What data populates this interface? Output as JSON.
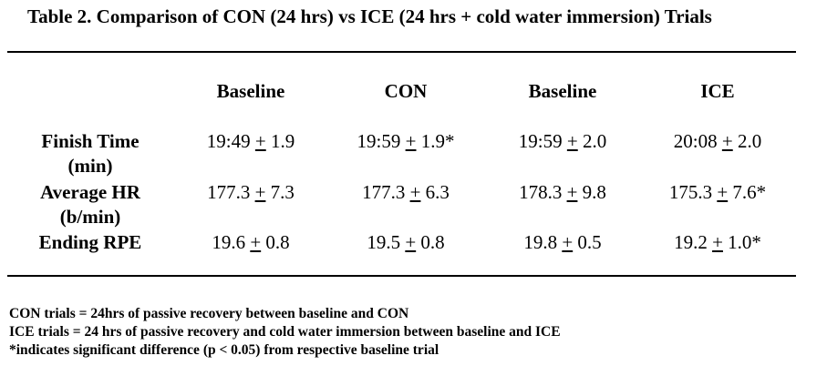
{
  "title": "Table 2.  Comparison of CON (24 hrs) vs ICE (24 hrs + cold water immersion) Trials",
  "columns": [
    "Baseline",
    "CON",
    "Baseline",
    "ICE"
  ],
  "rows": [
    {
      "label_line1": "Finish Time",
      "label_line2": "(min)",
      "cells": [
        {
          "mean": "19:49",
          "pm": "+",
          "sd": "1.9",
          "mark": ""
        },
        {
          "mean": "19:59",
          "pm": "+",
          "sd": "1.9",
          "mark": "*"
        },
        {
          "mean": "19:59",
          "pm": "+",
          "sd": "2.0",
          "mark": ""
        },
        {
          "mean": "20:08",
          "pm": "+",
          "sd": "2.0",
          "mark": ""
        }
      ]
    },
    {
      "label_line1": "Average HR",
      "label_line2": "(b/min)",
      "cells": [
        {
          "mean": "177.3",
          "pm": "+",
          "sd": "7.3",
          "mark": ""
        },
        {
          "mean": "177.3",
          "pm": "+",
          "sd": "6.3",
          "mark": ""
        },
        {
          "mean": "178.3",
          "pm": "+",
          "sd": "9.8",
          "mark": ""
        },
        {
          "mean": "175.3",
          "pm": "+",
          "sd": "7.6",
          "mark": "*"
        }
      ]
    },
    {
      "label_line1": "Ending RPE",
      "label_line2": "",
      "cells": [
        {
          "mean": "19.6",
          "pm": "+",
          "sd": "0.8",
          "mark": ""
        },
        {
          "mean": "19.5",
          "pm": "+",
          "sd": "0.8",
          "mark": ""
        },
        {
          "mean": "19.8",
          "pm": "+",
          "sd": "0.5",
          "mark": ""
        },
        {
          "mean": "19.2",
          "pm": "+",
          "sd": "1.0",
          "mark": "*"
        }
      ]
    }
  ],
  "footnotes": [
    "CON trials = 24hrs of passive recovery between baseline and CON",
    "ICE trials = 24 hrs of passive recovery and cold water immersion between baseline and ICE",
    "*indicates significant difference (p < 0.05) from respective baseline trial"
  ]
}
